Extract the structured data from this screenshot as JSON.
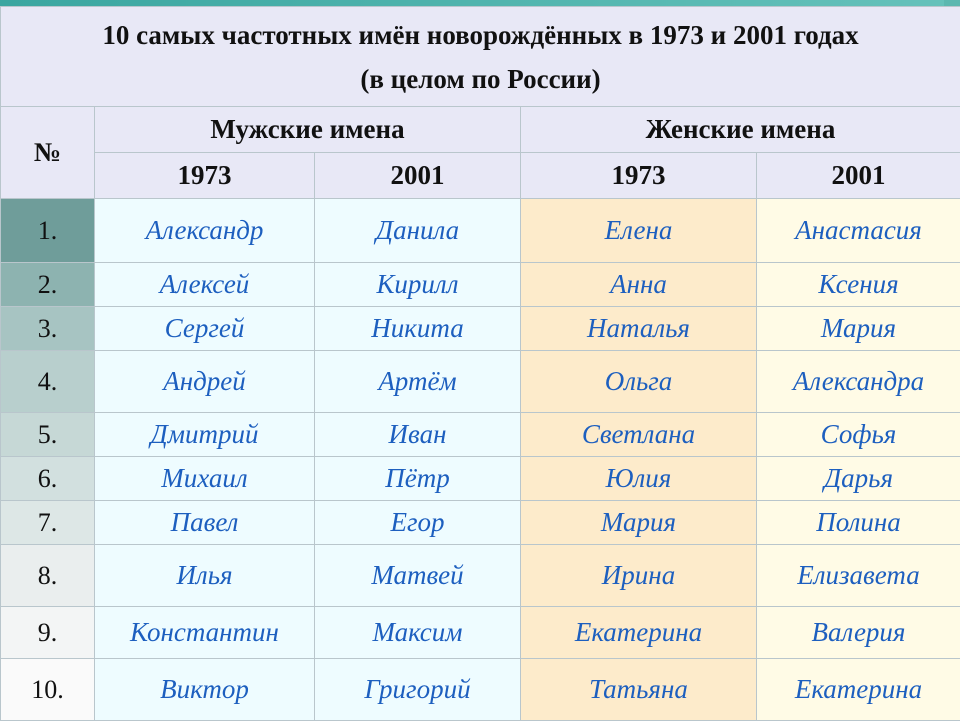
{
  "title": {
    "line1": "10 самых частотных имён новорождённых в 1973 и 2001 годах",
    "line2": "(в целом по России)"
  },
  "headers": {
    "number": "№",
    "male": "Мужские имена",
    "female": "Женские имена",
    "year1": "1973",
    "year2": "2001"
  },
  "rows": [
    {
      "num": "1.",
      "m1973": "Александр",
      "m2001": "Данила",
      "f1973": "Елена",
      "f2001": "Анастасия"
    },
    {
      "num": "2.",
      "m1973": "Алексей",
      "m2001": "Кирилл",
      "f1973": "Анна",
      "f2001": "Ксения"
    },
    {
      "num": "3.",
      "m1973": "Сергей",
      "m2001": "Никита",
      "f1973": "Наталья",
      "f2001": "Мария"
    },
    {
      "num": "4.",
      "m1973": "Андрей",
      "m2001": "Артём",
      "f1973": "Ольга",
      "f2001": "Александра"
    },
    {
      "num": "5.",
      "m1973": "Дмитрий",
      "m2001": "Иван",
      "f1973": "Светлана",
      "f2001": "Софья"
    },
    {
      "num": "6.",
      "m1973": "Михаил",
      "m2001": "Пётр",
      "f1973": "Юлия",
      "f2001": "Дарья"
    },
    {
      "num": "7.",
      "m1973": "Павел",
      "m2001": "Егор",
      "f1973": "Мария",
      "f2001": "Полина"
    },
    {
      "num": "8.",
      "m1973": "Илья",
      "m2001": "Матвей",
      "f1973": "Ирина",
      "f2001": "Елизавета"
    },
    {
      "num": "9.",
      "m1973": "Константин",
      "m2001": "Максим",
      "f1973": "Екатерина",
      "f2001": "Валерия"
    },
    {
      "num": "10.",
      "m1973": "Виктор",
      "m2001": "Григорий",
      "f1973": "Татьяна",
      "f2001": "Екатерина"
    }
  ],
  "colors": {
    "name_text": "#1d5fbf",
    "header_bg": "#e8e8f6",
    "male_bg": "#eefcff",
    "female_1973_bg": "#fdebcb",
    "female_2001_bg": "#fffbe6"
  }
}
